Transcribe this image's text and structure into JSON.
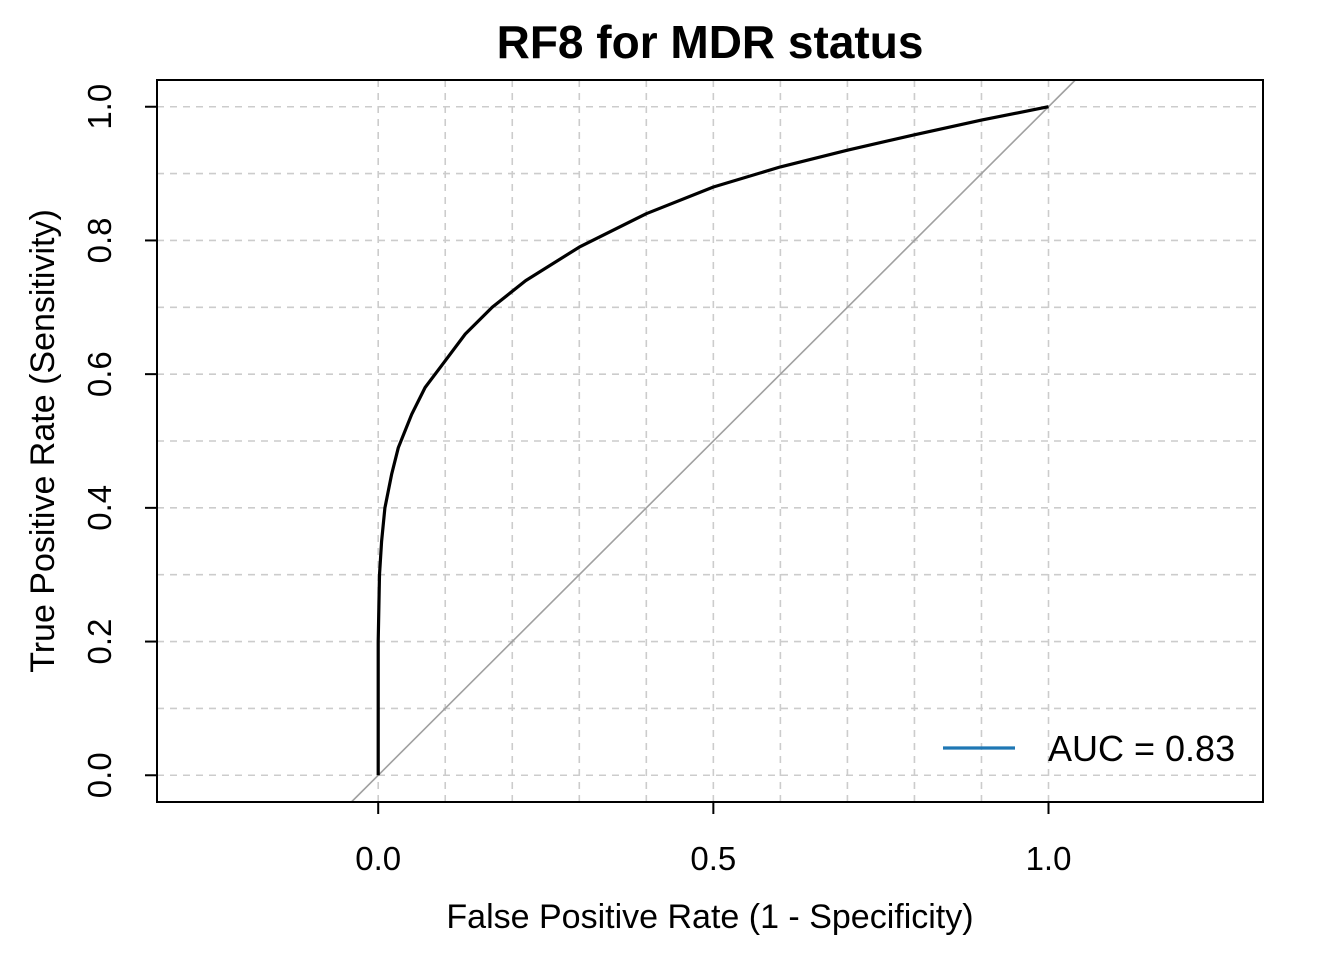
{
  "chart_data": {
    "type": "line",
    "title": "RF8 for MDR status",
    "xlabel": "False Positive Rate (1 - Specificity)",
    "ylabel": "True Positive Rate (Sensitivity)",
    "xlim": [
      -0.33,
      1.32
    ],
    "ylim": [
      -0.04,
      1.04
    ],
    "x_ticks": [
      "0.0",
      "0.5",
      "1.0"
    ],
    "y_ticks": [
      "0.0",
      "0.2",
      "0.4",
      "0.6",
      "0.8",
      "1.0"
    ],
    "grid": true,
    "legend_position": "bottom-right",
    "legend": [
      {
        "label": "AUC = 0.83",
        "color": "#1f77b4"
      }
    ],
    "series": [
      {
        "color": "#000000",
        "x": [
          0,
          0,
          0.002,
          0.005,
          0.01,
          0.02,
          0.03,
          0.05,
          0.07,
          0.1,
          0.13,
          0.17,
          0.22,
          0.3,
          0.4,
          0.5,
          0.6,
          0.7,
          0.8,
          0.9,
          1.0
        ],
        "y": [
          0,
          0.2,
          0.3,
          0.35,
          0.4,
          0.45,
          0.49,
          0.54,
          0.58,
          0.62,
          0.66,
          0.7,
          0.74,
          0.79,
          0.84,
          0.88,
          0.91,
          0.935,
          0.958,
          0.98,
          1.0
        ]
      }
    ],
    "reference_line": {
      "color": "#a0a0a0",
      "x": [
        -0.04,
        1.04
      ],
      "y": [
        -0.04,
        1.04
      ]
    }
  }
}
